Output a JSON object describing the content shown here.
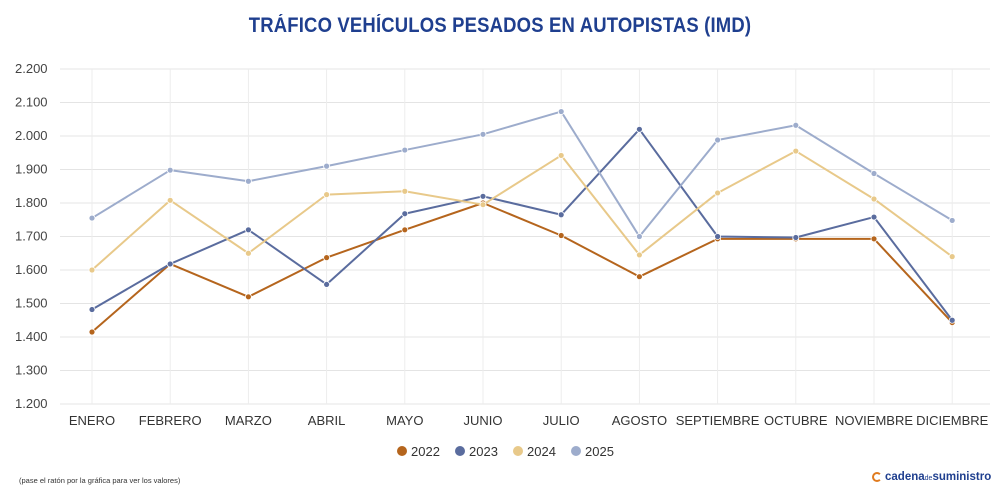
{
  "chart_data": {
    "type": "line",
    "title": "TRÁFICO VEHÍCULOS PESADOS EN AUTOPISTAS (IMD)",
    "categories": [
      "ENERO",
      "FEBRERO",
      "MARZO",
      "ABRIL",
      "MAYO",
      "JUNIO",
      "JULIO",
      "AGOSTO",
      "SEPTIEMBRE",
      "OCTUBRE",
      "NOVIEMBRE",
      "DICIEMBRE"
    ],
    "ylim": [
      1200,
      2200
    ],
    "yticks": [
      1200,
      1300,
      1400,
      1500,
      1600,
      1700,
      1800,
      1900,
      2000,
      2100,
      2200
    ],
    "ytick_labels": [
      "1.200",
      "1.300",
      "1.400",
      "1.500",
      "1.600",
      "1.700",
      "1.800",
      "1.900",
      "2.000",
      "2.100",
      "2.200"
    ],
    "grid": true,
    "legend_position": "bottom-center",
    "series": [
      {
        "name": "2022",
        "color": "#b5651d",
        "values": [
          1415,
          1618,
          1520,
          1637,
          1720,
          1800,
          1703,
          1580,
          1693,
          1693,
          1693,
          1443
        ]
      },
      {
        "name": "2023",
        "color": "#5a6c9e",
        "values": [
          1482,
          1618,
          1720,
          1557,
          1768,
          1820,
          1765,
          2020,
          1700,
          1697,
          1758,
          1450
        ]
      },
      {
        "name": "2024",
        "color": "#e8c98a",
        "values": [
          1600,
          1808,
          1650,
          1825,
          1835,
          1795,
          1942,
          1645,
          1830,
          1955,
          1812,
          1640
        ]
      },
      {
        "name": "2025",
        "color": "#9daccc",
        "values": [
          1755,
          1898,
          1865,
          1910,
          1958,
          2005,
          2073,
          1700,
          1988,
          2032,
          1888,
          1748
        ]
      }
    ]
  },
  "footnote": "(pase el ratón por la gráfica para ver los valores)",
  "brand": {
    "text": "cadena",
    "small": "de",
    "text2": "suministro",
    "icon": "cadena-logo-icon"
  }
}
